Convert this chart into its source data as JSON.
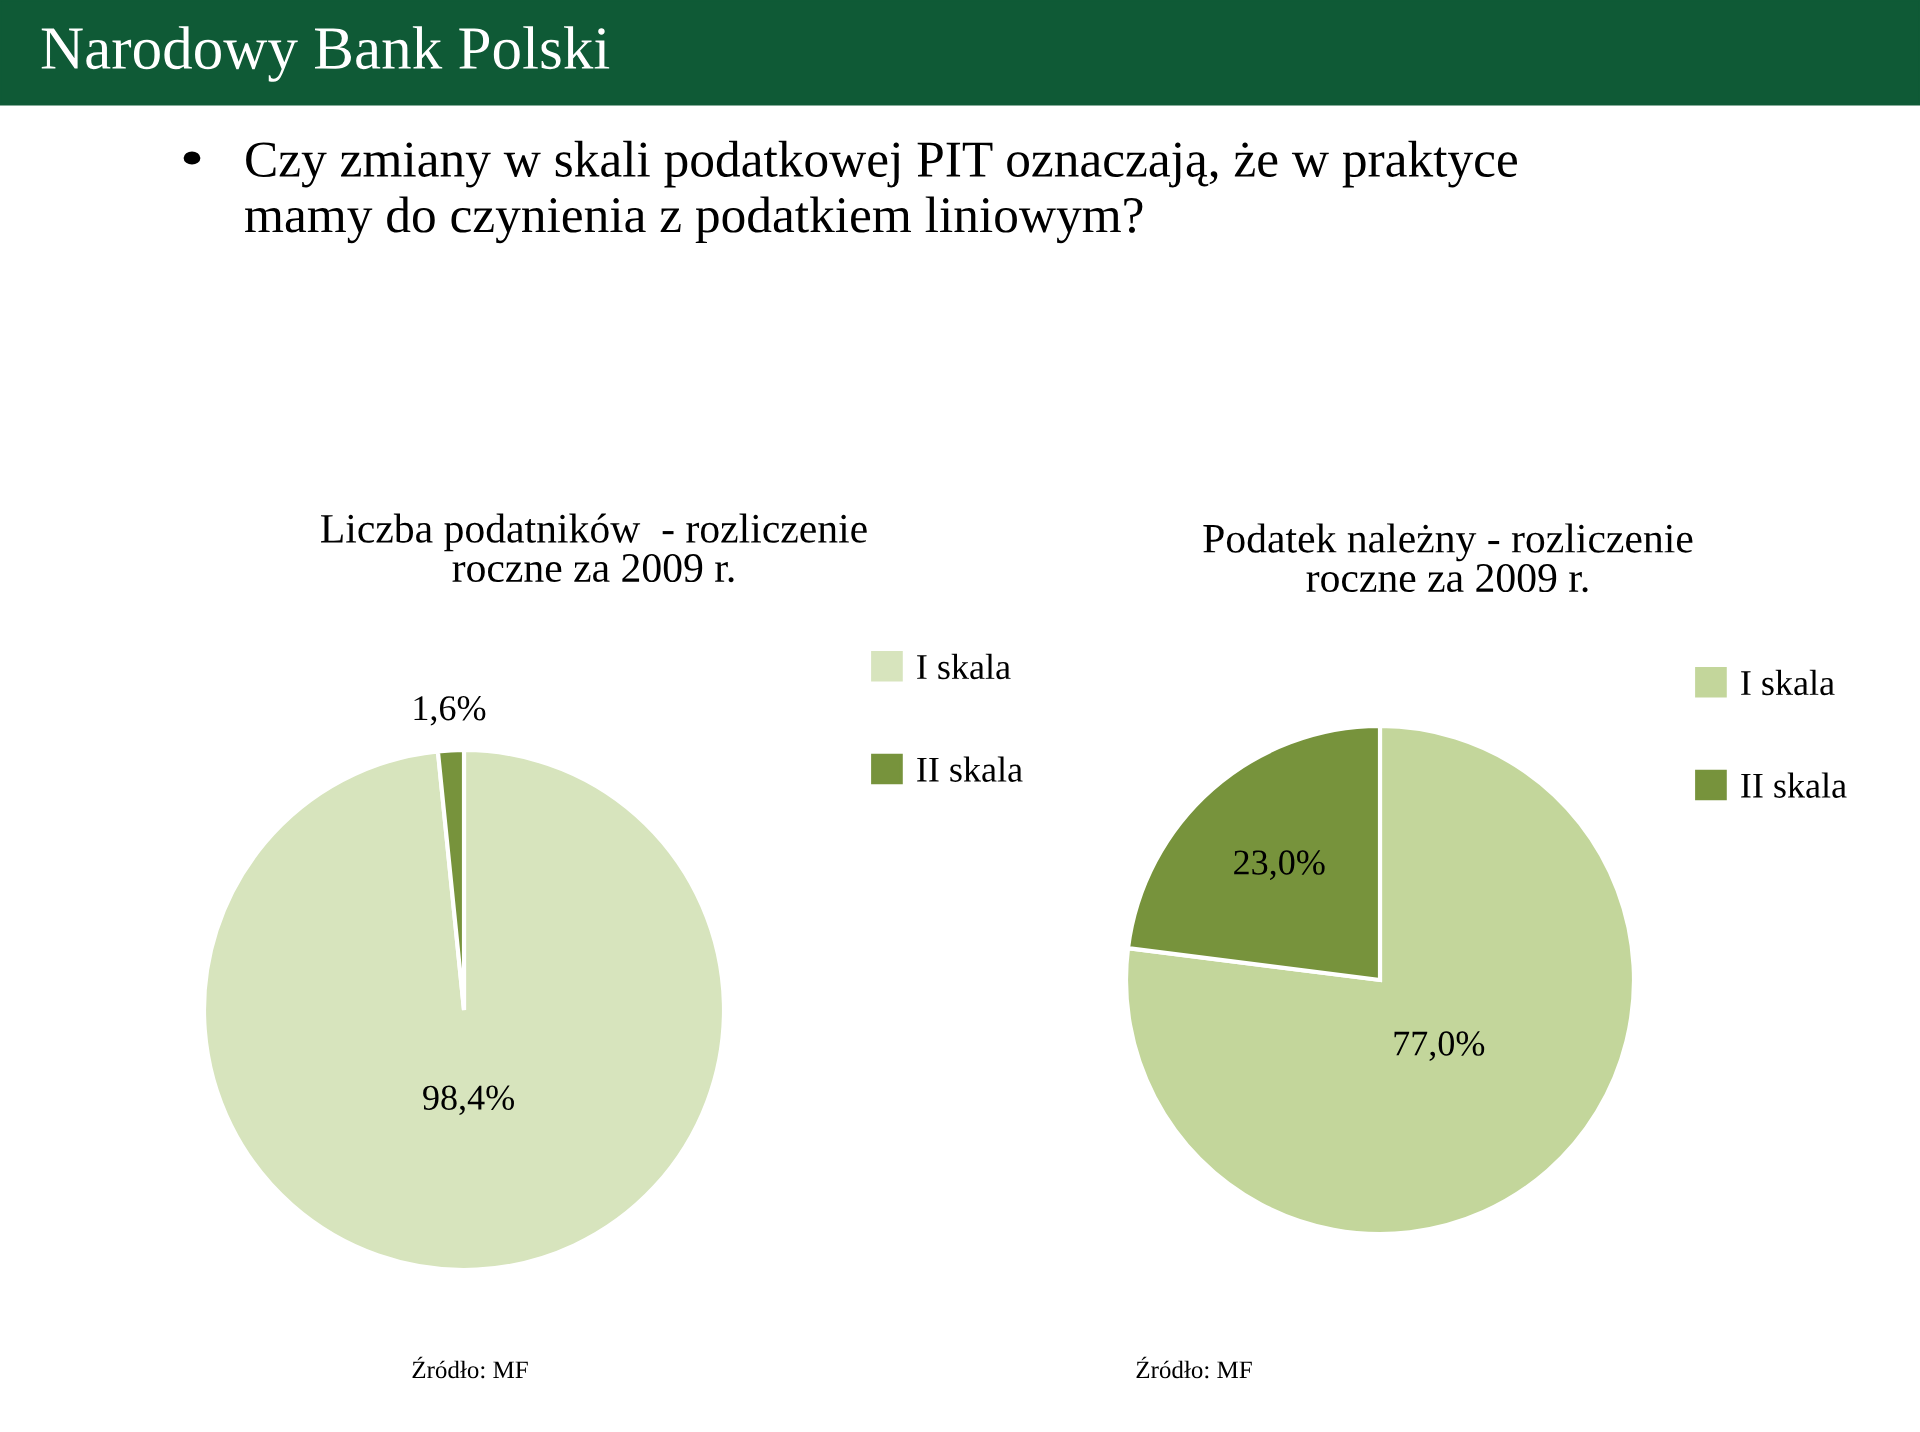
{
  "chart_data": [
    {
      "type": "pie",
      "title": "Liczba podatników  - rozliczenie\nroczne za 2009 r.",
      "categories": [
        "I skala",
        "II skala"
      ],
      "values": [
        98.4,
        1.6
      ],
      "colors": [
        "#d7e4bd",
        "#77933c"
      ],
      "value_labels": [
        "98,4%",
        "1,6%"
      ],
      "legend": "right",
      "annotations": [
        "Narodowy Bank Polski",
        "Czy zmiany w skali podatkowej PIT oznaczają, że w praktyce\nmamy do czynienia z podatkiem liniowym?",
        "Źródło: MF"
      ]
    },
    {
      "type": "pie",
      "title": "Podatek należny - rozliczenie\nroczne za 2009 r.",
      "categories": [
        "I skala",
        "II skala"
      ],
      "values": [
        77.0,
        23.0
      ],
      "colors": [
        "#c3d69b",
        "#77933c"
      ],
      "value_labels": [
        "77,0%",
        "23,0%"
      ],
      "legend": "right",
      "annotations": [
        "Źródło: MF"
      ]
    }
  ]
}
